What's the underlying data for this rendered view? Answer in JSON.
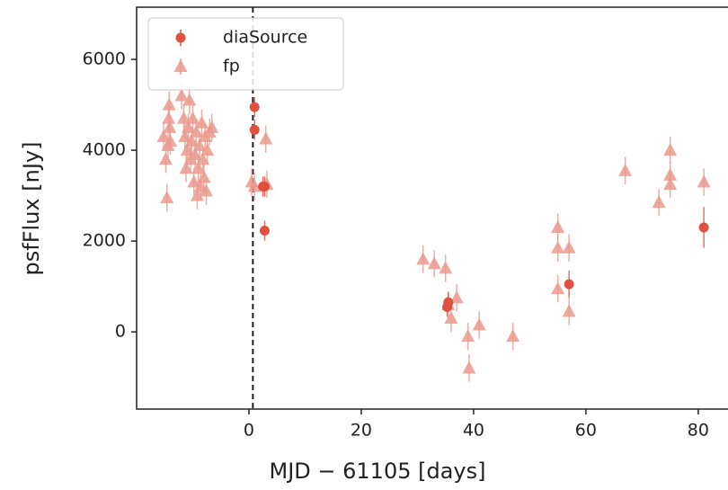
{
  "chart_data": {
    "type": "scatter",
    "xlabel": "MJD − 61105  [days]",
    "ylabel": "psfFlux [nJy]",
    "xlim": [
      -20,
      85.3
    ],
    "ylim": [
      -1700,
      7150
    ],
    "xticks": [
      0,
      20,
      40,
      60,
      80
    ],
    "yticks": [
      0,
      2000,
      4000,
      6000
    ],
    "vline": 0.7,
    "legend": "upper left",
    "series": [
      {
        "name": "diaSource",
        "color": "#e0503f",
        "marker": "circle",
        "x": [
          1.0,
          1.0,
          2.5,
          2.8,
          2.8,
          35.3,
          35.5,
          57,
          81
        ],
        "values": [
          4950,
          4450,
          3200,
          3200,
          2230,
          550,
          650,
          1050,
          2300
        ],
        "yerr": [
          220,
          220,
          220,
          220,
          220,
          220,
          220,
          300,
          450
        ]
      },
      {
        "name": "fp",
        "color": "#eb9a8d",
        "marker": "triangle",
        "x": [
          -15.2,
          -14.8,
          -14.6,
          -14.4,
          -14.3,
          -14.2,
          -14.1,
          -14,
          -12,
          -11.6,
          -11.4,
          -11.2,
          -11,
          -10.8,
          -10.6,
          -10.4,
          -10.2,
          -10,
          -9.8,
          -9.6,
          -9.4,
          -9.2,
          -9,
          -8.8,
          -8.6,
          -8.4,
          -8.2,
          -8,
          -7.8,
          -7.6,
          -7.4,
          -7,
          -6.6,
          0.5,
          1.0,
          3.0,
          3.2,
          31,
          33,
          35,
          35.5,
          36,
          37,
          39,
          39.2,
          41,
          47,
          55,
          55,
          55,
          57,
          57,
          67,
          73,
          75,
          75,
          75,
          81
        ],
        "values": [
          4300,
          3800,
          2950,
          4100,
          4700,
          5000,
          4500,
          4200,
          5200,
          4700,
          4300,
          3600,
          4000,
          4500,
          5100,
          3800,
          4200,
          4700,
          3300,
          3900,
          4400,
          3000,
          3600,
          4100,
          3200,
          4600,
          3800,
          3400,
          4300,
          3100,
          4000,
          4400,
          4500,
          3300,
          3200,
          4250,
          3250,
          1600,
          1500,
          1400,
          600,
          300,
          750,
          -100,
          -800,
          150,
          -100,
          2300,
          1850,
          950,
          1850,
          450,
          3550,
          2850,
          4000,
          3450,
          3250,
          3300
        ],
        "yerr": [
          300,
          300,
          300,
          300,
          300,
          300,
          300,
          300,
          300,
          300,
          300,
          300,
          300,
          300,
          300,
          300,
          300,
          300,
          300,
          300,
          300,
          300,
          300,
          300,
          300,
          300,
          300,
          300,
          300,
          300,
          300,
          300,
          300,
          300,
          300,
          300,
          300,
          300,
          300,
          300,
          300,
          300,
          300,
          300,
          300,
          300,
          300,
          300,
          300,
          300,
          300,
          300,
          300,
          300,
          300,
          300,
          300,
          300
        ]
      }
    ]
  }
}
